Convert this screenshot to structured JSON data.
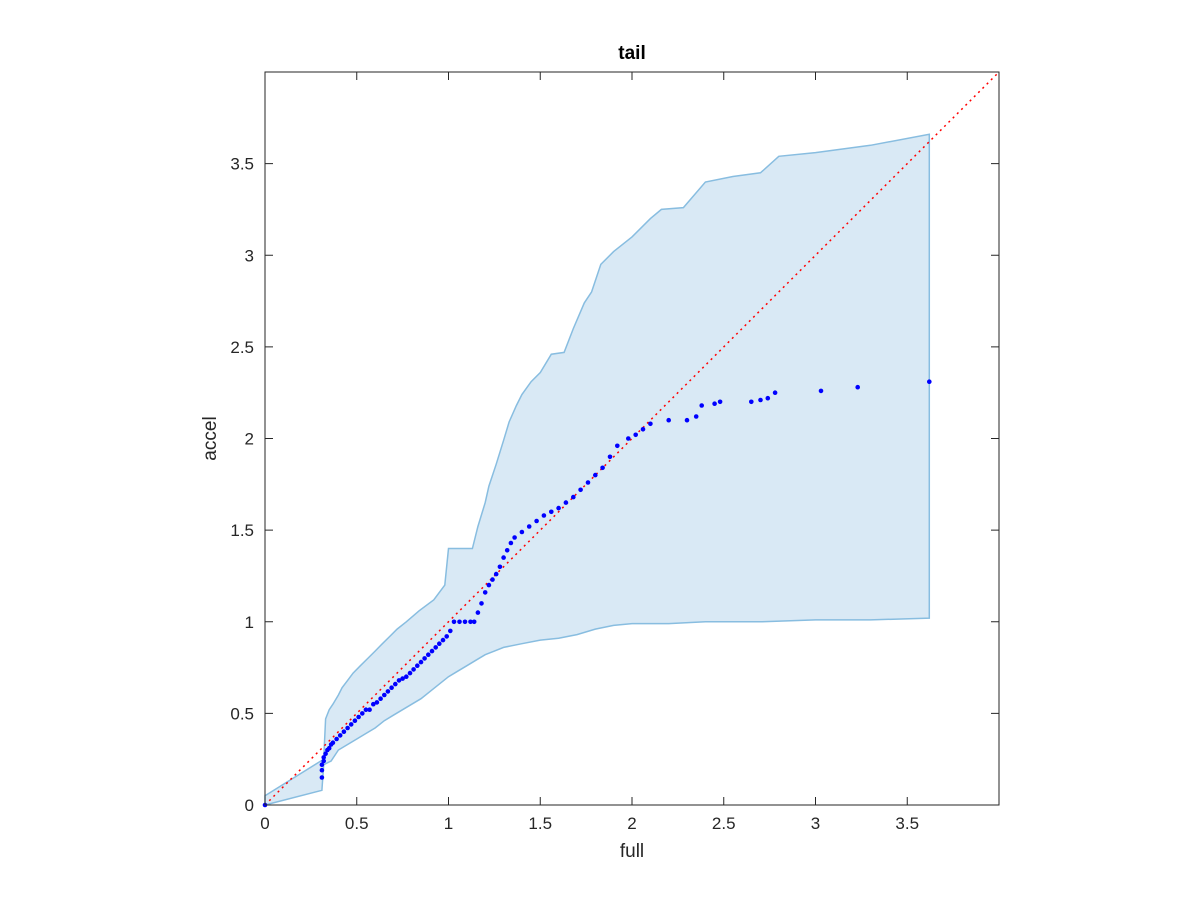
{
  "chart_data": {
    "type": "scatter",
    "title": "tail",
    "xlabel": "full",
    "ylabel": "accel",
    "xlim": [
      0,
      4
    ],
    "ylim": [
      0,
      4
    ],
    "xticks": [
      0,
      0.5,
      1,
      1.5,
      2,
      2.5,
      3,
      3.5
    ],
    "xtick_labels": [
      "0",
      "0.5",
      "1",
      "1.5",
      "2",
      "2.5",
      "3",
      "3.5"
    ],
    "yticks": [
      0,
      0.5,
      1,
      1.5,
      2,
      2.5,
      3,
      3.5
    ],
    "ytick_labels": [
      "0",
      "0.5",
      "1",
      "1.5",
      "2",
      "2.5",
      "3",
      "3.5"
    ],
    "grid": false,
    "box": true,
    "reference_line": {
      "from": [
        0,
        0
      ],
      "to": [
        4,
        4
      ],
      "style": "dotted",
      "color": "#ff0000"
    },
    "band": {
      "color": "#d9e9f5",
      "edge_color": "#88bde0",
      "upper": [
        [
          0,
          0.05
        ],
        [
          0.32,
          0.25
        ],
        [
          0.33,
          0.47
        ],
        [
          0.35,
          0.52
        ],
        [
          0.37,
          0.55
        ],
        [
          0.4,
          0.6
        ],
        [
          0.42,
          0.64
        ],
        [
          0.45,
          0.68
        ],
        [
          0.48,
          0.72
        ],
        [
          0.52,
          0.76
        ],
        [
          0.56,
          0.8
        ],
        [
          0.6,
          0.84
        ],
        [
          0.64,
          0.88
        ],
        [
          0.68,
          0.92
        ],
        [
          0.72,
          0.96
        ],
        [
          0.77,
          1.0
        ],
        [
          0.84,
          1.06
        ],
        [
          0.92,
          1.12
        ],
        [
          0.98,
          1.2
        ],
        [
          1.0,
          1.4
        ],
        [
          1.13,
          1.4
        ],
        [
          1.16,
          1.52
        ],
        [
          1.2,
          1.65
        ],
        [
          1.22,
          1.74
        ],
        [
          1.26,
          1.86
        ],
        [
          1.3,
          1.99
        ],
        [
          1.33,
          2.09
        ],
        [
          1.37,
          2.18
        ],
        [
          1.4,
          2.24
        ],
        [
          1.45,
          2.31
        ],
        [
          1.5,
          2.36
        ],
        [
          1.56,
          2.46
        ],
        [
          1.63,
          2.47
        ],
        [
          1.68,
          2.6
        ],
        [
          1.74,
          2.74
        ],
        [
          1.78,
          2.8
        ],
        [
          1.83,
          2.95
        ],
        [
          1.9,
          3.02
        ],
        [
          2.0,
          3.1
        ],
        [
          2.1,
          3.2
        ],
        [
          2.16,
          3.25
        ],
        [
          2.28,
          3.26
        ],
        [
          2.4,
          3.4
        ],
        [
          2.55,
          3.43
        ],
        [
          2.7,
          3.45
        ],
        [
          2.8,
          3.54
        ],
        [
          3.0,
          3.56
        ],
        [
          3.3,
          3.6
        ],
        [
          3.62,
          3.66
        ]
      ],
      "lower": [
        [
          3.62,
          1.02
        ],
        [
          3.3,
          1.01
        ],
        [
          3.0,
          1.01
        ],
        [
          2.7,
          1.0
        ],
        [
          2.4,
          1.0
        ],
        [
          2.2,
          0.99
        ],
        [
          2.0,
          0.99
        ],
        [
          1.9,
          0.98
        ],
        [
          1.8,
          0.96
        ],
        [
          1.7,
          0.93
        ],
        [
          1.6,
          0.91
        ],
        [
          1.5,
          0.9
        ],
        [
          1.4,
          0.88
        ],
        [
          1.3,
          0.86
        ],
        [
          1.25,
          0.84
        ],
        [
          1.2,
          0.82
        ],
        [
          1.15,
          0.79
        ],
        [
          1.1,
          0.76
        ],
        [
          1.05,
          0.73
        ],
        [
          1.0,
          0.7
        ],
        [
          0.95,
          0.66
        ],
        [
          0.9,
          0.62
        ],
        [
          0.85,
          0.58
        ],
        [
          0.8,
          0.55
        ],
        [
          0.75,
          0.52
        ],
        [
          0.7,
          0.49
        ],
        [
          0.65,
          0.46
        ],
        [
          0.6,
          0.42
        ],
        [
          0.55,
          0.39
        ],
        [
          0.5,
          0.36
        ],
        [
          0.45,
          0.33
        ],
        [
          0.4,
          0.3
        ],
        [
          0.36,
          0.24
        ],
        [
          0.32,
          0.22
        ],
        [
          0.31,
          0.08
        ],
        [
          0,
          0
        ]
      ]
    },
    "series": [
      {
        "color": "#0000ff",
        "points": [
          [
            0,
            0
          ],
          [
            0.31,
            0.15
          ],
          [
            0.31,
            0.19
          ],
          [
            0.31,
            0.22
          ],
          [
            0.32,
            0.24
          ],
          [
            0.32,
            0.26
          ],
          [
            0.33,
            0.28
          ],
          [
            0.34,
            0.3
          ],
          [
            0.35,
            0.31
          ],
          [
            0.36,
            0.33
          ],
          [
            0.37,
            0.34
          ],
          [
            0.39,
            0.36
          ],
          [
            0.41,
            0.38
          ],
          [
            0.43,
            0.4
          ],
          [
            0.45,
            0.42
          ],
          [
            0.47,
            0.44
          ],
          [
            0.49,
            0.46
          ],
          [
            0.51,
            0.48
          ],
          [
            0.53,
            0.5
          ],
          [
            0.55,
            0.52
          ],
          [
            0.57,
            0.52
          ],
          [
            0.59,
            0.55
          ],
          [
            0.61,
            0.56
          ],
          [
            0.63,
            0.58
          ],
          [
            0.65,
            0.6
          ],
          [
            0.67,
            0.62
          ],
          [
            0.69,
            0.64
          ],
          [
            0.71,
            0.66
          ],
          [
            0.73,
            0.68
          ],
          [
            0.75,
            0.69
          ],
          [
            0.77,
            0.7
          ],
          [
            0.79,
            0.72
          ],
          [
            0.81,
            0.74
          ],
          [
            0.83,
            0.76
          ],
          [
            0.85,
            0.78
          ],
          [
            0.87,
            0.8
          ],
          [
            0.89,
            0.82
          ],
          [
            0.91,
            0.84
          ],
          [
            0.93,
            0.86
          ],
          [
            0.95,
            0.88
          ],
          [
            0.97,
            0.9
          ],
          [
            0.99,
            0.92
          ],
          [
            1.01,
            0.95
          ],
          [
            1.03,
            1.0
          ],
          [
            1.06,
            1.0
          ],
          [
            1.09,
            1.0
          ],
          [
            1.12,
            1.0
          ],
          [
            1.14,
            1.0
          ],
          [
            1.16,
            1.05
          ],
          [
            1.18,
            1.1
          ],
          [
            1.2,
            1.16
          ],
          [
            1.22,
            1.2
          ],
          [
            1.24,
            1.23
          ],
          [
            1.26,
            1.26
          ],
          [
            1.28,
            1.3
          ],
          [
            1.3,
            1.35
          ],
          [
            1.32,
            1.39
          ],
          [
            1.34,
            1.43
          ],
          [
            1.36,
            1.46
          ],
          [
            1.4,
            1.49
          ],
          [
            1.44,
            1.52
          ],
          [
            1.48,
            1.55
          ],
          [
            1.52,
            1.58
          ],
          [
            1.56,
            1.6
          ],
          [
            1.6,
            1.62
          ],
          [
            1.64,
            1.65
          ],
          [
            1.68,
            1.68
          ],
          [
            1.72,
            1.72
          ],
          [
            1.76,
            1.76
          ],
          [
            1.8,
            1.8
          ],
          [
            1.84,
            1.84
          ],
          [
            1.88,
            1.9
          ],
          [
            1.92,
            1.96
          ],
          [
            1.98,
            2.0
          ],
          [
            2.02,
            2.02
          ],
          [
            2.06,
            2.05
          ],
          [
            2.1,
            2.08
          ],
          [
            2.2,
            2.1
          ],
          [
            2.3,
            2.1
          ],
          [
            2.35,
            2.12
          ],
          [
            2.38,
            2.18
          ],
          [
            2.45,
            2.19
          ],
          [
            2.48,
            2.2
          ],
          [
            2.65,
            2.2
          ],
          [
            2.7,
            2.21
          ],
          [
            2.74,
            2.22
          ],
          [
            2.78,
            2.25
          ],
          [
            3.03,
            2.26
          ],
          [
            3.23,
            2.28
          ],
          [
            3.62,
            2.31
          ]
        ]
      }
    ]
  }
}
